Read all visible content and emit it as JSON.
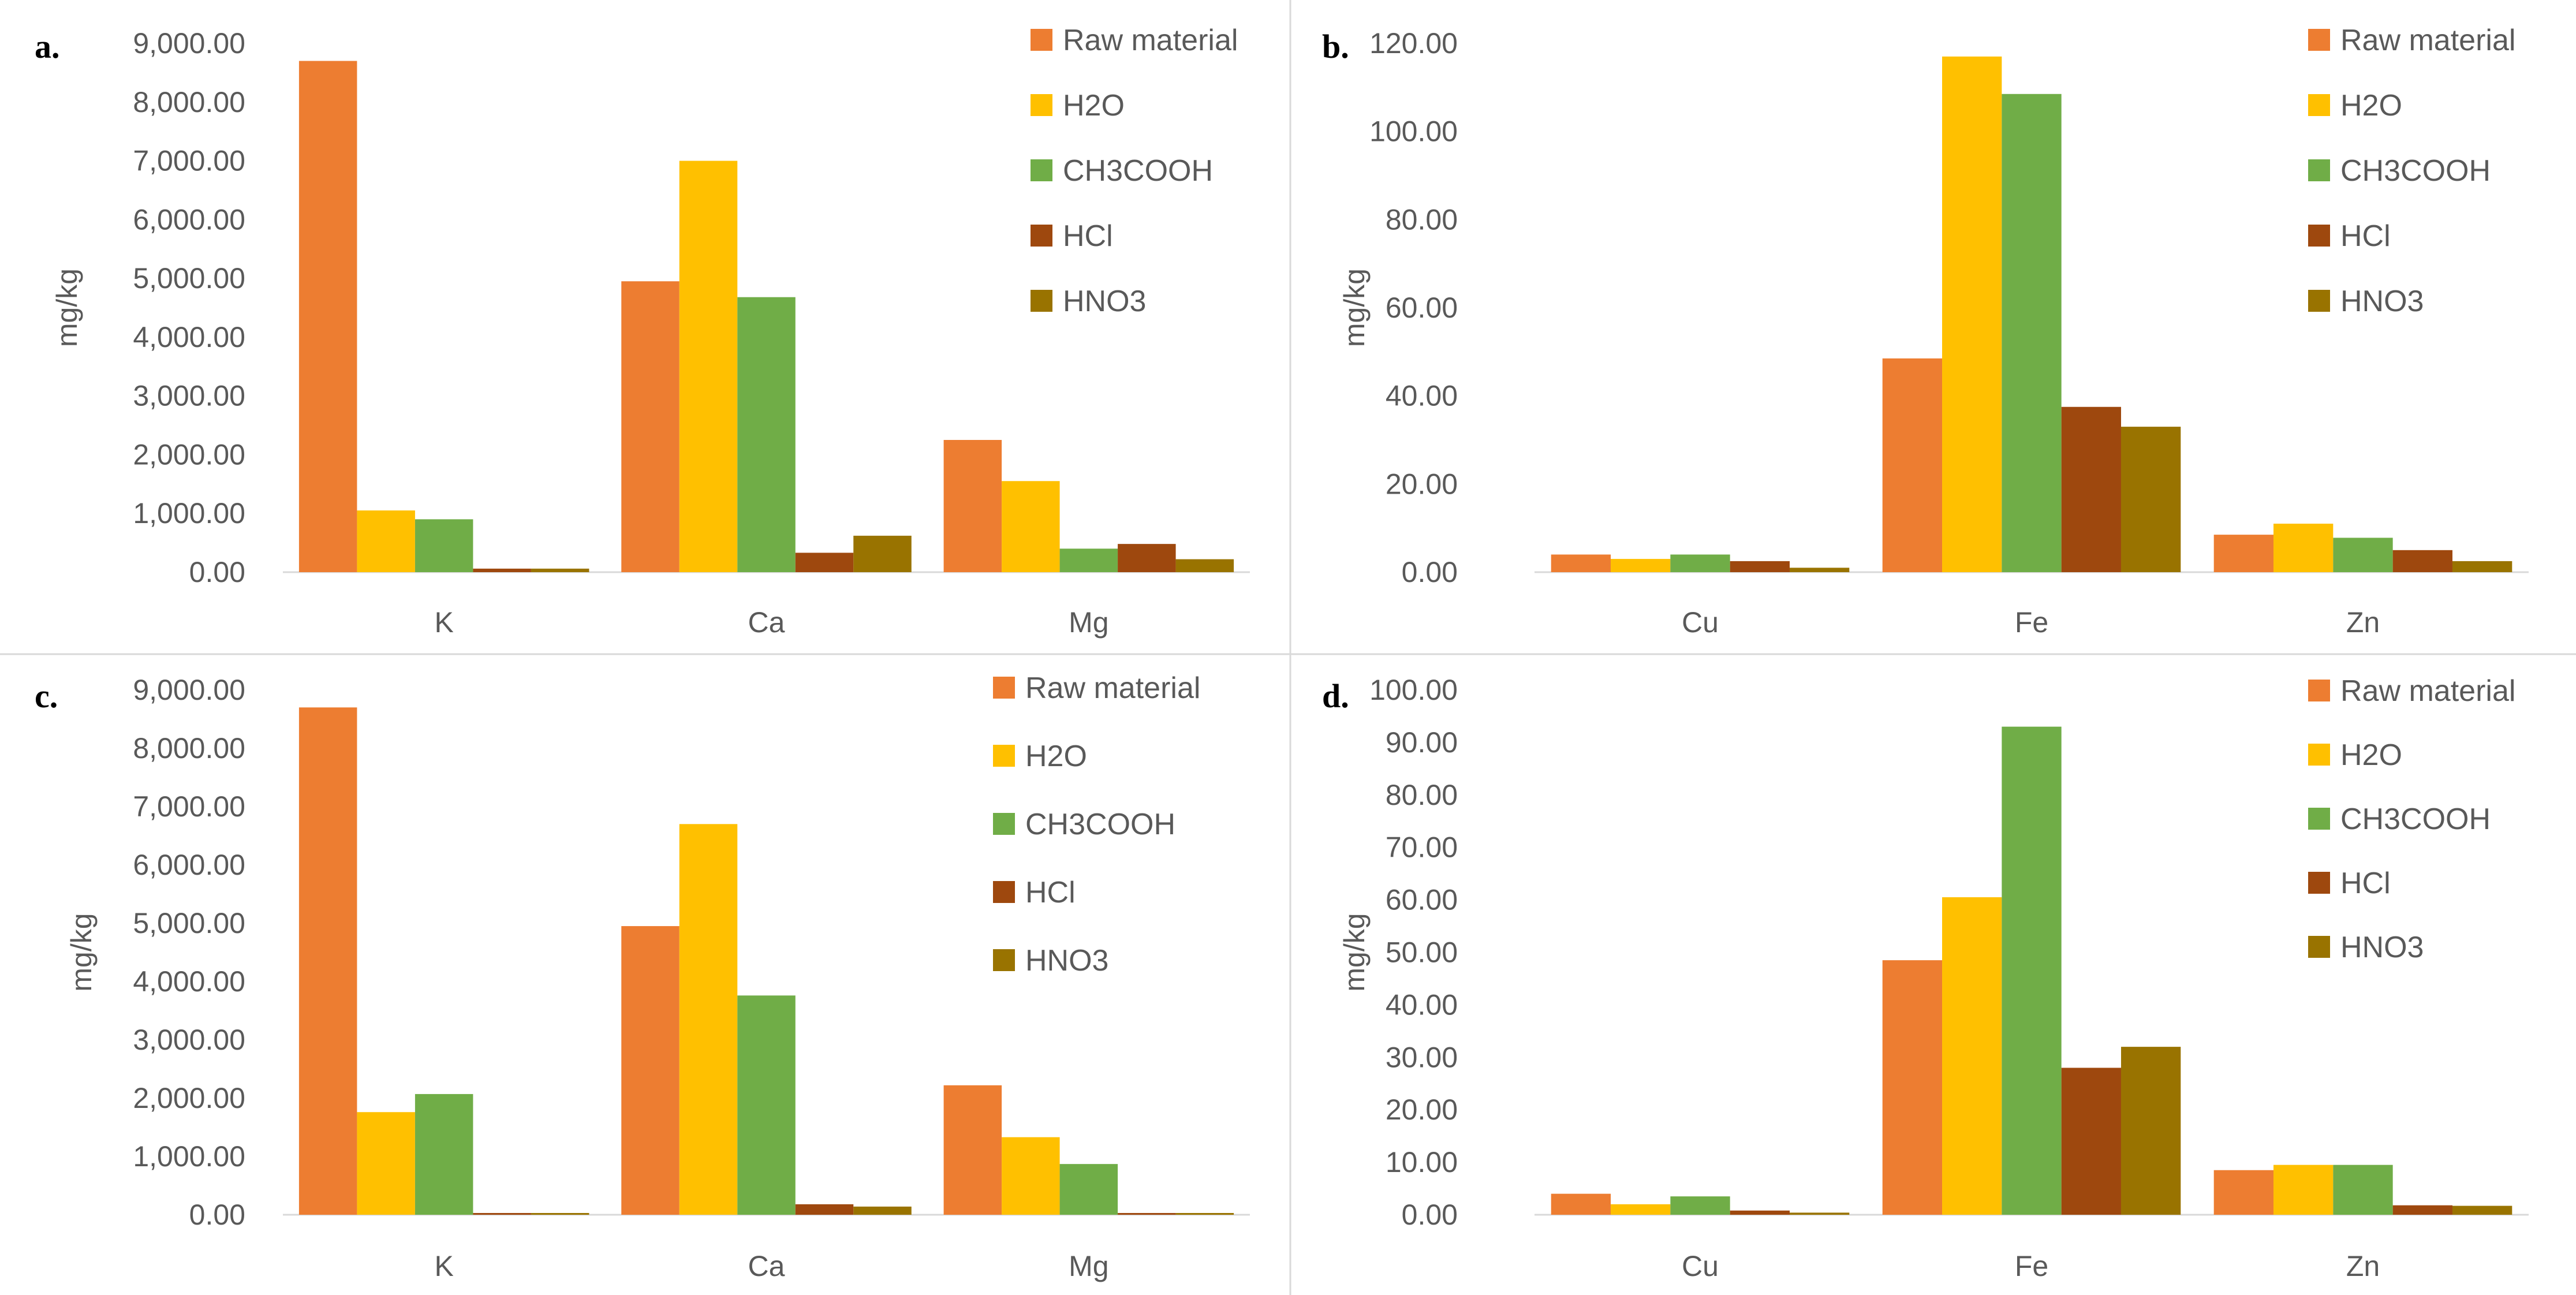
{
  "legend_labels": [
    "Raw material",
    "H2O",
    "CH3COOH",
    "HCl",
    "HNO3"
  ],
  "colors": {
    "series": [
      "#ED7D31",
      "#FFC000",
      "#70AD47",
      "#9E480E",
      "#997300"
    ],
    "axis": "#D9D9D9",
    "text": "#595959",
    "divider": "#D9D9D9"
  },
  "chart_data": [
    {
      "panel": "a.",
      "type": "bar",
      "title": "",
      "ylabel": "mg/kg",
      "xlabel": "",
      "categories": [
        "K",
        "Ca",
        "Mg"
      ],
      "ylim": [
        0,
        9000
      ],
      "yticks": [
        "0.00",
        "1,000.00",
        "2,000.00",
        "3,000.00",
        "4,000.00",
        "5,000.00",
        "6,000.00",
        "7,000.00",
        "8,000.00",
        "9,000.00"
      ],
      "legend": "top-right",
      "series": [
        {
          "name": "Raw material",
          "values": [
            8700,
            4950,
            2250
          ]
        },
        {
          "name": "H2O",
          "values": [
            1050,
            7000,
            1550
          ]
        },
        {
          "name": "CH3COOH",
          "values": [
            900,
            4680,
            400
          ]
        },
        {
          "name": "HCl",
          "values": [
            60,
            330,
            480
          ]
        },
        {
          "name": "HNO3",
          "values": [
            60,
            620,
            220
          ]
        }
      ]
    },
    {
      "panel": "b.",
      "type": "bar",
      "title": "",
      "ylabel": "mg/kg",
      "xlabel": "",
      "categories": [
        "Cu",
        "Fe",
        "Zn"
      ],
      "ylim": [
        0,
        120
      ],
      "yticks": [
        "0.00",
        "20.00",
        "40.00",
        "60.00",
        "80.00",
        "100.00",
        "120.00"
      ],
      "legend": "top-right",
      "series": [
        {
          "name": "Raw material",
          "values": [
            4.0,
            48.5,
            8.5
          ]
        },
        {
          "name": "H2O",
          "values": [
            3.0,
            117.0,
            11.0
          ]
        },
        {
          "name": "CH3COOH",
          "values": [
            4.0,
            108.5,
            7.8
          ]
        },
        {
          "name": "HCl",
          "values": [
            2.5,
            37.5,
            5.0
          ]
        },
        {
          "name": "HNO3",
          "values": [
            1.0,
            33.0,
            2.5
          ]
        }
      ]
    },
    {
      "panel": "c.",
      "type": "bar",
      "title": "",
      "ylabel": "mg/kg",
      "xlabel": "",
      "categories": [
        "K",
        "Ca",
        "Mg"
      ],
      "ylim": [
        0,
        9000
      ],
      "yticks": [
        "0.00",
        "1,000.00",
        "2,000.00",
        "3,000.00",
        "4,000.00",
        "5,000.00",
        "6,000.00",
        "7,000.00",
        "8,000.00",
        "9,000.00"
      ],
      "legend": "top-right",
      "series": [
        {
          "name": "Raw material",
          "values": [
            8700,
            4950,
            2220
          ]
        },
        {
          "name": "H2O",
          "values": [
            1760,
            6700,
            1330
          ]
        },
        {
          "name": "CH3COOH",
          "values": [
            2070,
            3760,
            870
          ]
        },
        {
          "name": "HCl",
          "values": [
            30,
            180,
            30
          ]
        },
        {
          "name": "HNO3",
          "values": [
            30,
            140,
            30
          ]
        }
      ]
    },
    {
      "panel": "d.",
      "type": "bar",
      "title": "",
      "ylabel": "mg/kg",
      "xlabel": "",
      "categories": [
        "Cu",
        "Fe",
        "Zn"
      ],
      "ylim": [
        0,
        100
      ],
      "yticks": [
        "0.00",
        "10.00",
        "20.00",
        "30.00",
        "40.00",
        "50.00",
        "60.00",
        "70.00",
        "80.00",
        "90.00",
        "100.00"
      ],
      "legend": "top-right",
      "series": [
        {
          "name": "Raw material",
          "values": [
            4.0,
            48.5,
            8.5
          ]
        },
        {
          "name": "H2O",
          "values": [
            2.0,
            60.5,
            9.5
          ]
        },
        {
          "name": "CH3COOH",
          "values": [
            3.5,
            93.0,
            9.5
          ]
        },
        {
          "name": "HCl",
          "values": [
            0.8,
            28.0,
            1.8
          ]
        },
        {
          "name": "HNO3",
          "values": [
            0.4,
            32.0,
            1.7
          ]
        }
      ]
    }
  ]
}
